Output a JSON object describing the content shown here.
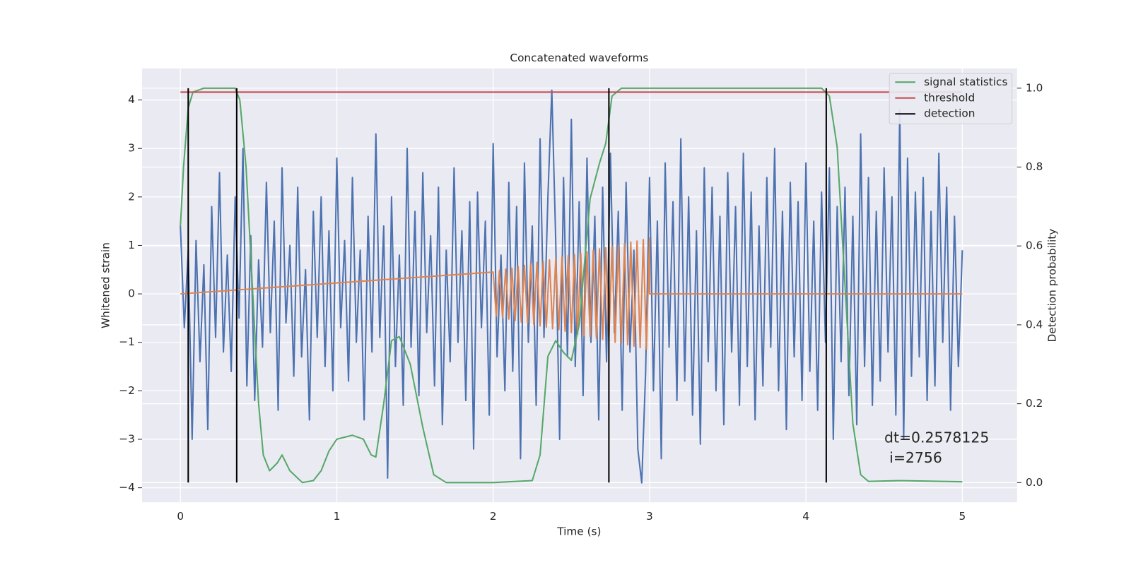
{
  "chart_data": {
    "type": "line",
    "title": "Concatenated waveforms",
    "xlabel": "Time (s)",
    "ylabel": "Whitened strain",
    "y2label": "Detection probability",
    "annotations": [
      "dt=0.2578125",
      "i=2756"
    ],
    "xlim": [
      -0.245,
      5.35
    ],
    "ylim": [
      -4.3,
      4.65
    ],
    "y2lim": [
      -0.05,
      1.05
    ],
    "xticks": [
      0,
      1,
      2,
      3,
      4,
      5
    ],
    "yticks": [
      {
        "value": -4,
        "label": "−4"
      },
      {
        "value": -3,
        "label": "−3"
      },
      {
        "value": -2,
        "label": "−2"
      },
      {
        "value": -1,
        "label": "−1"
      },
      0,
      1,
      2,
      3,
      4
    ],
    "y2ticks": [
      {
        "value": 0,
        "label": "0.0"
      },
      {
        "value": 0.2,
        "label": "0.2"
      },
      {
        "value": 0.4,
        "label": "0.4"
      },
      {
        "value": 0.6,
        "label": "0.6"
      },
      {
        "value": 0.8,
        "label": "0.8"
      },
      {
        "value": 1,
        "label": "1.0"
      }
    ],
    "grid": true,
    "background": "#eaeaf2",
    "legend": "upper right",
    "series": [
      {
        "color": "#4c72b0",
        "x": [
          0,
          0.025,
          0.05,
          0.075,
          0.1,
          0.125,
          0.15,
          0.175,
          0.2,
          0.225,
          0.25,
          0.275,
          0.3,
          0.325,
          0.35,
          0.375,
          0.4,
          0.425,
          0.45,
          0.475,
          0.5,
          0.525,
          0.55,
          0.575,
          0.6,
          0.625,
          0.65,
          0.675,
          0.7,
          0.725,
          0.75,
          0.775,
          0.8,
          0.825,
          0.85,
          0.875,
          0.9,
          0.925,
          0.95,
          0.975,
          1,
          1.025,
          1.05,
          1.075,
          1.1,
          1.125,
          1.15,
          1.175,
          1.2,
          1.225,
          1.25,
          1.275,
          1.3,
          1.325,
          1.35,
          1.375,
          1.4,
          1.425,
          1.45,
          1.475,
          1.5,
          1.525,
          1.55,
          1.575,
          1.6,
          1.625,
          1.65,
          1.675,
          1.7,
          1.725,
          1.75,
          1.775,
          1.8,
          1.825,
          1.85,
          1.875,
          1.9,
          1.925,
          1.95,
          1.975,
          2,
          2.025,
          2.05,
          2.075,
          2.1,
          2.125,
          2.15,
          2.175,
          2.2,
          2.225,
          2.25,
          2.275,
          2.3,
          2.325,
          2.35,
          2.375,
          2.4,
          2.425,
          2.45,
          2.475,
          2.5,
          2.525,
          2.55,
          2.575,
          2.6,
          2.625,
          2.65,
          2.675,
          2.7,
          2.725,
          2.75,
          2.775,
          2.8,
          2.825,
          2.85,
          2.875,
          2.9,
          2.925,
          2.95,
          2.975,
          3,
          3.025,
          3.05,
          3.075,
          3.1,
          3.125,
          3.15,
          3.175,
          3.2,
          3.225,
          3.25,
          3.275,
          3.3,
          3.325,
          3.35,
          3.375,
          3.4,
          3.425,
          3.45,
          3.475,
          3.5,
          3.525,
          3.55,
          3.575,
          3.6,
          3.625,
          3.65,
          3.675,
          3.7,
          3.725,
          3.75,
          3.775,
          3.8,
          3.825,
          3.85,
          3.875,
          3.9,
          3.925,
          3.95,
          3.975,
          4,
          4.025,
          4.05,
          4.075,
          4.1,
          4.125,
          4.15,
          4.175,
          4.2,
          4.225,
          4.25,
          4.275,
          4.3,
          4.325,
          4.35,
          4.375,
          4.4,
          4.425,
          4.45,
          4.475,
          4.5,
          4.525,
          4.55,
          4.575,
          4.6,
          4.625,
          4.65,
          4.675,
          4.7,
          4.725,
          4.75,
          4.775,
          4.8,
          4.825,
          4.85,
          4.875,
          4.9,
          4.925,
          4.95,
          4.975,
          5
        ],
        "values": [
          1.4,
          -0.7,
          0.9,
          -3.0,
          1.1,
          -1.4,
          0.6,
          -2.8,
          1.8,
          -0.9,
          2.5,
          -1.2,
          0.8,
          -1.6,
          2.0,
          -0.5,
          3.0,
          -1.9,
          1.2,
          -2.2,
          0.7,
          -1.1,
          2.3,
          -0.8,
          1.5,
          -2.4,
          2.6,
          -0.6,
          1.0,
          -1.7,
          2.2,
          -1.3,
          0.5,
          -2.6,
          1.7,
          -0.9,
          2.0,
          -1.5,
          1.3,
          -2.0,
          2.8,
          -0.7,
          1.1,
          -1.8,
          2.4,
          -1.0,
          0.9,
          -2.6,
          1.6,
          -1.2,
          3.3,
          -0.9,
          1.4,
          -3.8,
          2.0,
          -1.5,
          0.8,
          -2.3,
          3.0,
          -1.1,
          1.7,
          -2.1,
          2.5,
          -0.8,
          1.2,
          -1.9,
          2.2,
          -2.7,
          0.9,
          -1.4,
          2.6,
          -1.0,
          1.3,
          -2.2,
          1.9,
          -3.2,
          2.1,
          -0.7,
          1.5,
          -2.5,
          3.1,
          -1.3,
          0.8,
          -2.0,
          2.3,
          -1.6,
          1.8,
          -3.4,
          2.7,
          -1.0,
          1.4,
          -2.3,
          3.2,
          -0.9,
          2.0,
          4.2,
          1.1,
          -3.0,
          2.4,
          -1.3,
          3.6,
          -1.5,
          1.9,
          -2.1,
          2.8,
          -1.0,
          1.6,
          -2.6,
          2.2,
          -1.4,
          2.9,
          -0.8,
          1.7,
          -2.4,
          2.3,
          -1.2,
          0.9,
          -3.2,
          -3.9,
          -1.6,
          2.4,
          -2.0,
          1.5,
          -3.4,
          2.7,
          -1.1,
          1.9,
          -2.2,
          3.2,
          -1.8,
          2.0,
          -2.5,
          1.3,
          -3.1,
          2.6,
          -1.4,
          2.2,
          -2.0,
          1.6,
          -2.7,
          2.5,
          -1.2,
          1.8,
          -2.3,
          2.9,
          -1.5,
          2.1,
          -2.6,
          1.4,
          -1.9,
          2.4,
          -1.1,
          3.0,
          -2.0,
          1.7,
          -2.8,
          2.3,
          -1.3,
          1.9,
          -2.2,
          2.7,
          -1.6,
          1.5,
          -2.4,
          2.1,
          -1.0,
          2.6,
          -3.0,
          1.8,
          -1.4,
          2.2,
          -2.1,
          1.6,
          -2.7,
          3.3,
          -1.5,
          2.4,
          -2.3,
          1.7,
          -1.8,
          2.6,
          -1.2,
          2.0,
          -2.5,
          3.8,
          -3.0,
          2.8,
          -1.7,
          2.1,
          -1.3,
          2.4,
          -2.2,
          1.7,
          -1.9,
          2.9,
          -1.0,
          2.2,
          -2.4,
          1.6,
          -1.5,
          0.9
        ]
      },
      {
        "color": "#dd8452",
        "x": [
          0,
          2,
          2.02,
          2.04,
          2.06,
          2.08,
          2.1,
          2.12,
          2.14,
          2.16,
          2.18,
          2.2,
          2.22,
          2.24,
          2.26,
          2.28,
          2.3,
          2.32,
          2.34,
          2.36,
          2.38,
          2.4,
          2.42,
          2.44,
          2.46,
          2.48,
          2.5,
          2.52,
          2.54,
          2.56,
          2.58,
          2.6,
          2.62,
          2.64,
          2.66,
          2.68,
          2.7,
          2.72,
          2.74,
          2.76,
          2.78,
          2.8,
          2.82,
          2.84,
          2.86,
          2.88,
          2.9,
          2.92,
          2.94,
          2.96,
          2.98,
          3,
          3,
          5
        ],
        "values": [
          0,
          0.45,
          -0.46,
          0.48,
          -0.49,
          0.51,
          -0.52,
          0.53,
          -0.55,
          0.56,
          -0.58,
          0.59,
          -0.6,
          0.62,
          -0.63,
          0.65,
          -0.66,
          0.67,
          -0.69,
          0.7,
          -0.72,
          0.73,
          -0.74,
          0.76,
          -0.77,
          0.79,
          -0.8,
          0.81,
          -0.83,
          0.84,
          -0.86,
          0.87,
          -0.88,
          0.9,
          -0.91,
          0.93,
          -0.94,
          0.95,
          -0.97,
          0.98,
          -1.0,
          1.01,
          -1.02,
          1.04,
          -1.05,
          1.07,
          -1.08,
          1.09,
          -1.11,
          1.12,
          -1.14,
          1.15,
          0,
          0
        ]
      },
      {
        "name": "signal statistics",
        "color": "#55a868",
        "axis": "y2",
        "x": [
          0,
          0.02,
          0.05,
          0.08,
          0.15,
          0.35,
          0.38,
          0.42,
          0.46,
          0.5,
          0.53,
          0.57,
          0.62,
          0.65,
          0.7,
          0.78,
          0.85,
          0.9,
          0.95,
          1.0,
          1.1,
          1.17,
          1.22,
          1.25,
          1.3,
          1.35,
          1.4,
          1.47,
          1.55,
          1.62,
          1.7,
          2.0,
          2.25,
          2.3,
          2.35,
          2.4,
          2.45,
          2.5,
          2.55,
          2.62,
          2.68,
          2.72,
          2.76,
          2.82,
          4.1,
          4.15,
          4.2,
          4.25,
          4.3,
          4.35,
          4.4,
          4.6,
          5.0
        ],
        "values": [
          0.65,
          0.8,
          0.95,
          0.99,
          1.0,
          1.0,
          0.97,
          0.8,
          0.5,
          0.2,
          0.07,
          0.03,
          0.05,
          0.07,
          0.03,
          0.0,
          0.005,
          0.03,
          0.08,
          0.11,
          0.12,
          0.11,
          0.07,
          0.065,
          0.2,
          0.36,
          0.37,
          0.3,
          0.14,
          0.02,
          0.0,
          0.0,
          0.005,
          0.07,
          0.32,
          0.36,
          0.33,
          0.31,
          0.4,
          0.72,
          0.81,
          0.86,
          0.98,
          1.0,
          1.0,
          0.98,
          0.85,
          0.5,
          0.15,
          0.02,
          0.003,
          0.005,
          0.002
        ]
      },
      {
        "name": "threshold",
        "color": "#c44e52",
        "axis": "y2",
        "x": [
          0,
          5
        ],
        "values": [
          0.99,
          0.99
        ]
      },
      {
        "name": "detection",
        "color": "#000000",
        "axis": "y2",
        "kind": "vlines",
        "x": [
          0.05,
          0.36,
          2.74,
          4.13
        ],
        "ymin": 0,
        "ymax": 1
      }
    ]
  }
}
